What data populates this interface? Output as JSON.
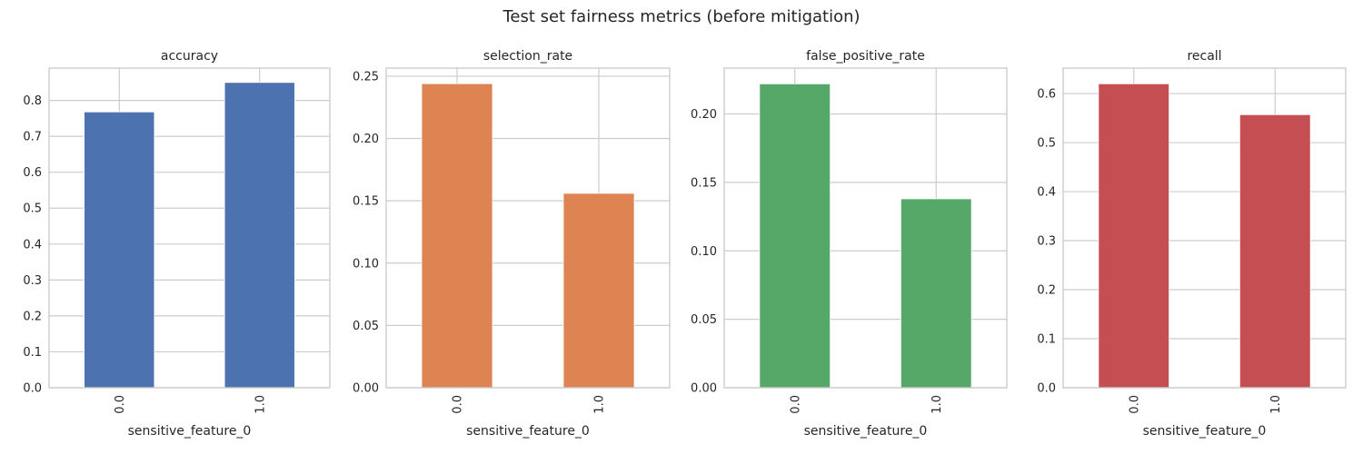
{
  "figure_title": "Test set fairness metrics (before mitigation)",
  "chart_data": [
    {
      "type": "bar",
      "title": "accuracy",
      "xlabel": "sensitive_feature_0",
      "ylabel": "",
      "categories": [
        "0.0",
        "1.0"
      ],
      "values": [
        0.768,
        0.85
      ],
      "ylim": [
        0,
        0.89
      ],
      "yticks": [
        "0.0",
        "0.1",
        "0.2",
        "0.3",
        "0.4",
        "0.5",
        "0.6",
        "0.7",
        "0.8"
      ],
      "color": "#4c72b0",
      "grid": true
    },
    {
      "type": "bar",
      "title": "selection_rate",
      "xlabel": "sensitive_feature_0",
      "ylabel": "",
      "categories": [
        "0.0",
        "1.0"
      ],
      "values": [
        0.244,
        0.156
      ],
      "ylim": [
        0,
        0.2565
      ],
      "yticks": [
        "0.00",
        "0.05",
        "0.10",
        "0.15",
        "0.20",
        "0.25"
      ],
      "color": "#dd8452",
      "grid": true
    },
    {
      "type": "bar",
      "title": "false_positive_rate",
      "xlabel": "sensitive_feature_0",
      "ylabel": "",
      "categories": [
        "0.0",
        "1.0"
      ],
      "values": [
        0.222,
        0.138
      ],
      "ylim": [
        0,
        0.2335
      ],
      "yticks": [
        "0.00",
        "0.05",
        "0.10",
        "0.15",
        "0.20"
      ],
      "color": "#55a868",
      "grid": true
    },
    {
      "type": "bar",
      "title": "recall",
      "xlabel": "sensitive_feature_0",
      "ylabel": "",
      "categories": [
        "0.0",
        "1.0"
      ],
      "values": [
        0.62,
        0.557
      ],
      "ylim": [
        0,
        0.652
      ],
      "yticks": [
        "0.0",
        "0.1",
        "0.2",
        "0.3",
        "0.4",
        "0.5",
        "0.6"
      ],
      "color": "#c44e52",
      "grid": true
    }
  ]
}
